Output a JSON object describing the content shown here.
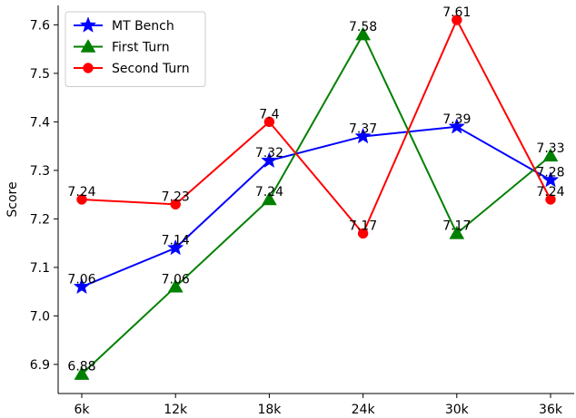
{
  "chart_data": {
    "type": "line",
    "title": "",
    "xlabel": "",
    "ylabel": "Score",
    "categories": [
      "6k",
      "12k",
      "18k",
      "24k",
      "30k",
      "36k"
    ],
    "ylim": [
      6.84,
      7.64
    ],
    "yticks": [
      6.9,
      7.0,
      7.1,
      7.2,
      7.3,
      7.4,
      7.5,
      7.6
    ],
    "ytick_labels": [
      "6.9",
      "7.0",
      "7.1",
      "7.2",
      "7.3",
      "7.4",
      "7.5",
      "7.6"
    ],
    "grid": false,
    "legend_position": "top-left",
    "series": [
      {
        "name": "MT Bench",
        "color": "#0000ff",
        "marker": "star",
        "values": [
          7.06,
          7.14,
          7.32,
          7.37,
          7.39,
          7.28
        ],
        "labels": [
          "7.06",
          "7.14",
          "7.32",
          "7.37",
          "7.39",
          "7.28"
        ]
      },
      {
        "name": "First Turn",
        "color": "#008000",
        "marker": "triangle",
        "values": [
          6.88,
          7.06,
          7.24,
          7.58,
          7.17,
          7.33
        ],
        "labels": [
          "6.88",
          "7.06",
          "7.24",
          "7.58",
          "7.17",
          "7.33"
        ]
      },
      {
        "name": "Second Turn",
        "color": "#ff0000",
        "marker": "circle",
        "values": [
          7.24,
          7.23,
          7.4,
          7.17,
          7.61,
          7.24
        ],
        "labels": [
          "7.24",
          "7.23",
          "7.4",
          "7.17",
          "7.61",
          "7.24"
        ]
      }
    ]
  }
}
